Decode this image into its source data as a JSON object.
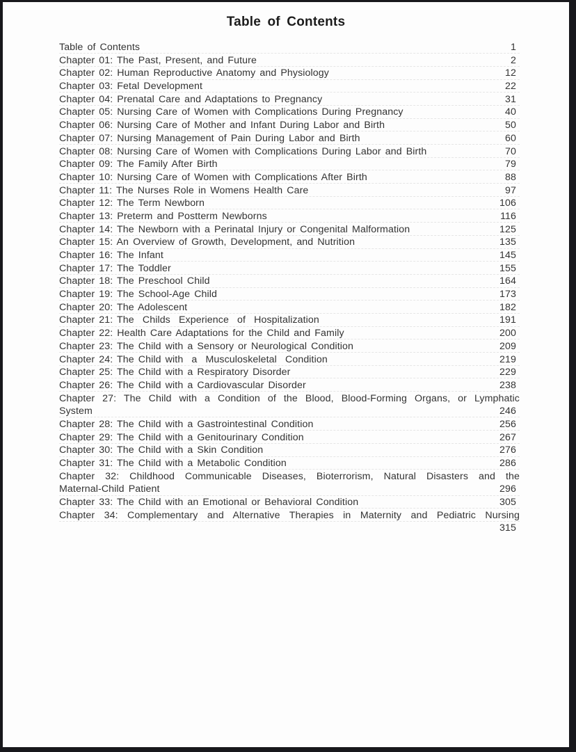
{
  "header": {
    "title": "Table of Contents"
  },
  "colors": {
    "frame": "#18181c",
    "paper": "#fdfdfd",
    "text": "#333333",
    "rule_line": "#e5e5e5"
  },
  "toc": {
    "entries": [
      {
        "title": "Table of Contents",
        "page": "1"
      },
      {
        "title": "Chapter 01: The Past, Present, and Future",
        "page": "2"
      },
      {
        "title": "Chapter 02: Human Reproductive Anatomy and Physiology",
        "page": "12"
      },
      {
        "title": "Chapter 03: Fetal Development",
        "page": "22"
      },
      {
        "title": "Chapter 04: Prenatal Care and Adaptations to Pregnancy",
        "page": "31"
      },
      {
        "title": "Chapter 05: Nursing Care of Women with Complications During Pregnancy",
        "page": "40"
      },
      {
        "title": "Chapter 06: Nursing Care of Mother and Infant During Labor and Birth",
        "page": "50"
      },
      {
        "title": "Chapter 07: Nursing Management of Pain During Labor and Birth",
        "page": "60"
      },
      {
        "title": "Chapter 08: Nursing Care of Women with Complications During Labor and Birth",
        "page": "70"
      },
      {
        "title": "Chapter 09: The Family After Birth",
        "page": "79"
      },
      {
        "title": "Chapter 10: Nursing Care of Women with Complications After Birth",
        "page": "88"
      },
      {
        "title": "Chapter 11: The Nurses Role in Womens Health Care",
        "page": "97"
      },
      {
        "title": "Chapter 12: The Term Newborn",
        "page": "106"
      },
      {
        "title": "Chapter 13: Preterm and Postterm Newborns",
        "page": "116"
      },
      {
        "title": "Chapter 14: The Newborn with a Perinatal Injury or Congenital Malformation",
        "page": "125"
      },
      {
        "title": "Chapter 15: An Overview of Growth, Development, and Nutrition",
        "page": "135"
      },
      {
        "title": "Chapter 16: The Infant",
        "page": "145"
      },
      {
        "title": "Chapter 17: The Toddler",
        "page": "155"
      },
      {
        "title": "Chapter 18: The Preschool Child",
        "page": "164"
      },
      {
        "title": "Chapter 19: The School-Age Child",
        "page": "173"
      },
      {
        "title": "Chapter 20: The Adolescent",
        "page": "182"
      },
      {
        "title": "Chapter 21: The  Childs  Experience  of  Hospitalization",
        "page": "191"
      },
      {
        "title": "Chapter 22: Health Care Adaptations for the Child and Family",
        "page": "200"
      },
      {
        "title": "Chapter 23: The Child with a Sensory or Neurological Condition",
        "page": "209"
      },
      {
        "title": "Chapter 24: The Child with  a  Musculoskeletal  Condition",
        "page": "219"
      },
      {
        "title": "Chapter 25: The Child with a Respiratory Disorder",
        "page": "229"
      },
      {
        "title": "Chapter 26: The Child with a Cardiovascular Disorder",
        "page": "238"
      },
      {
        "title": "Chapter 27: The Child with a Condition of the Blood, Blood-Forming Organs, or Lymphatic",
        "title2": "System",
        "page": "246"
      },
      {
        "title": "Chapter 28: The Child with a Gastrointestinal Condition",
        "page": "256"
      },
      {
        "title": "Chapter 29: The Child with a Genitourinary Condition",
        "page": "267"
      },
      {
        "title": "Chapter 30: The Child with a Skin Condition",
        "page": "276"
      },
      {
        "title": "Chapter 31: The Child with a Metabolic Condition",
        "page": "286"
      },
      {
        "title": "Chapter 32: Childhood Communicable Diseases, Bioterrorism, Natural Disasters and the",
        "title2": "Maternal-Child Patient",
        "page": "296"
      },
      {
        "title": "Chapter 33: The Child with an Emotional or Behavioral Condition",
        "page": "305"
      },
      {
        "title": "Chapter 34: Complementary and Alternative Therapies in Maternity and Pediatric Nursing",
        "title2": "",
        "page": "315"
      }
    ]
  }
}
